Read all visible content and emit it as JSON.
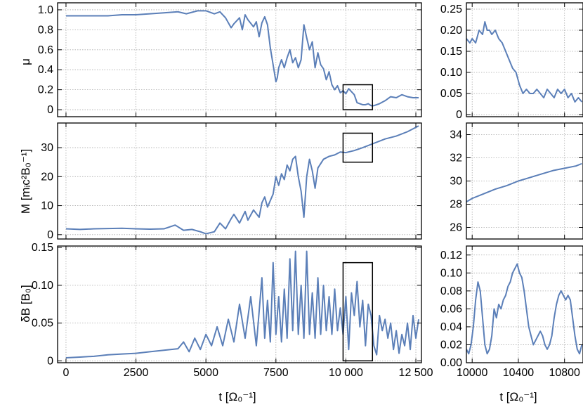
{
  "figure": {
    "line_color": "#5b7fb8",
    "inset_box_color": "#000000",
    "grid_color": "#aaaaaa"
  },
  "chart_data": [
    {
      "type": "line",
      "id": "mu_main",
      "ylabel": "μ",
      "xlabel": "",
      "xlim": [
        -300,
        12700
      ],
      "ylim": [
        -0.07,
        1.07
      ],
      "xticks": [
        0,
        2500,
        5000,
        7500,
        10000,
        12500
      ],
      "xtick_labels": [
        "",
        "",
        "",
        "",
        "",
        ""
      ],
      "yticks": [
        0,
        0.2,
        0.4,
        0.6,
        0.8,
        1.0
      ],
      "ytick_labels": [
        "0",
        "0.2",
        "0.4",
        "0.6",
        "0.8",
        "1.0"
      ],
      "grid": true,
      "inset_box": {
        "x": [
          9900,
          10950
        ],
        "y": [
          0,
          0.25
        ]
      },
      "series": [
        {
          "x": [
            0,
            500,
            1000,
            1500,
            2000,
            2500,
            3000,
            3500,
            4000,
            4300,
            4700,
            5000,
            5300,
            5500,
            5700,
            5900,
            6000,
            6200,
            6300,
            6400,
            6500,
            6700,
            6800,
            6900,
            7000,
            7100,
            7200,
            7300,
            7400,
            7500,
            7550,
            7600,
            7700,
            7800,
            7900,
            8000,
            8100,
            8200,
            8300,
            8400,
            8500,
            8600,
            8700,
            8800,
            8900,
            9000,
            9100,
            9200,
            9300,
            9400,
            9500,
            9600,
            9700,
            9800,
            9900,
            10000,
            10100,
            10200,
            10300,
            10400,
            10500,
            10600,
            10700,
            10800,
            10900,
            11000,
            11200,
            11400,
            11600,
            11800,
            12000,
            12200,
            12400,
            12600
          ],
          "y": [
            0.94,
            0.94,
            0.94,
            0.94,
            0.95,
            0.95,
            0.96,
            0.97,
            0.98,
            0.96,
            0.99,
            0.99,
            0.96,
            0.98,
            0.92,
            0.82,
            0.86,
            0.92,
            0.8,
            0.95,
            0.9,
            0.83,
            0.88,
            0.73,
            0.87,
            0.93,
            0.85,
            0.62,
            0.45,
            0.28,
            0.32,
            0.42,
            0.5,
            0.42,
            0.52,
            0.6,
            0.47,
            0.52,
            0.42,
            0.5,
            0.85,
            0.72,
            0.6,
            0.68,
            0.42,
            0.57,
            0.45,
            0.41,
            0.3,
            0.38,
            0.25,
            0.2,
            0.24,
            0.17,
            0.19,
            0.16,
            0.21,
            0.18,
            0.15,
            0.07,
            0.06,
            0.05,
            0.05,
            0.06,
            0.04,
            0.04,
            0.06,
            0.09,
            0.13,
            0.12,
            0.15,
            0.13,
            0.12,
            0.12
          ]
        }
      ]
    },
    {
      "type": "line",
      "id": "M_main",
      "ylabel": "M [mᵢc²B₀⁻¹]",
      "xlabel": "",
      "xlim": [
        -300,
        12700
      ],
      "ylim": [
        -1.5,
        38.5
      ],
      "xticks": [
        0,
        2500,
        5000,
        7500,
        10000,
        12500
      ],
      "xtick_labels": [
        "",
        "",
        "",
        "",
        "",
        ""
      ],
      "yticks": [
        0,
        10,
        20,
        30
      ],
      "ytick_labels": [
        "0",
        "10",
        "20",
        "30"
      ],
      "grid": true,
      "inset_box": {
        "x": [
          9900,
          10950
        ],
        "y": [
          25,
          35
        ]
      },
      "series": [
        {
          "x": [
            0,
            500,
            1000,
            1500,
            2000,
            2500,
            3000,
            3500,
            3900,
            4200,
            4500,
            4800,
            5000,
            5300,
            5500,
            5700,
            5900,
            6000,
            6200,
            6400,
            6500,
            6700,
            6900,
            7000,
            7100,
            7200,
            7400,
            7500,
            7600,
            7700,
            7800,
            7900,
            8000,
            8100,
            8200,
            8300,
            8400,
            8500,
            8600,
            8700,
            8800,
            8900,
            9000,
            9200,
            9400,
            9600,
            9800,
            10000,
            10300,
            10600,
            11000,
            11400,
            11800,
            12200,
            12600
          ],
          "y": [
            2.0,
            1.8,
            2.0,
            2.1,
            2.2,
            2.0,
            1.9,
            2.0,
            3.3,
            1.5,
            1.8,
            1.0,
            0.3,
            1.0,
            4.0,
            2.0,
            5.5,
            7.0,
            4.0,
            8.0,
            5.0,
            8.5,
            6.0,
            11.0,
            13.0,
            9.5,
            14.0,
            20.0,
            17.0,
            21.0,
            19.0,
            24.0,
            22.0,
            26.0,
            27.0,
            20.0,
            15.0,
            6.0,
            20.0,
            26.0,
            22.0,
            16.0,
            23.0,
            26.0,
            27.0,
            27.5,
            28.5,
            28.3,
            29.0,
            30.0,
            31.5,
            33.0,
            34.0,
            35.5,
            37.5
          ]
        }
      ]
    },
    {
      "type": "line",
      "id": "dB_main",
      "ylabel": "δB [B₀]",
      "xlabel": "t [Ω₀⁻¹]",
      "xlim": [
        -300,
        12700
      ],
      "ylim": [
        -0.0025,
        0.152
      ],
      "xticks": [
        0,
        2500,
        5000,
        7500,
        10000,
        12500
      ],
      "xtick_labels": [
        "0",
        "2500",
        "5000",
        "7500",
        "10 000",
        "12 500"
      ],
      "yticks": [
        0,
        0.05,
        0.1,
        0.15
      ],
      "ytick_labels": [
        "0",
        "0.05",
        "0.10",
        "0.15"
      ],
      "grid": true,
      "inset_box": {
        "x": [
          9900,
          10950
        ],
        "y": [
          0,
          0.13
        ]
      },
      "series": [
        {
          "x": [
            0,
            500,
            1000,
            1500,
            2000,
            2500,
            3000,
            3500,
            4000,
            4200,
            4400,
            4600,
            4800,
            5000,
            5200,
            5400,
            5600,
            5800,
            6000,
            6200,
            6400,
            6600,
            6800,
            7000,
            7100,
            7200,
            7300,
            7400,
            7500,
            7600,
            7700,
            7800,
            7900,
            8000,
            8100,
            8200,
            8300,
            8400,
            8500,
            8600,
            8700,
            8800,
            8900,
            9000,
            9100,
            9200,
            9300,
            9400,
            9500,
            9600,
            9700,
            9800,
            9900,
            10000,
            10100,
            10200,
            10300,
            10400,
            10500,
            10600,
            10700,
            10800,
            10900,
            11000,
            11100,
            11200,
            11300,
            11400,
            11500,
            11600,
            11700,
            11800,
            11900,
            12000,
            12100,
            12200,
            12300,
            12400,
            12500,
            12600
          ],
          "y": [
            0.004,
            0.005,
            0.006,
            0.008,
            0.009,
            0.01,
            0.012,
            0.014,
            0.016,
            0.025,
            0.012,
            0.03,
            0.015,
            0.035,
            0.02,
            0.045,
            0.02,
            0.055,
            0.025,
            0.075,
            0.03,
            0.085,
            0.02,
            0.11,
            0.03,
            0.08,
            0.025,
            0.13,
            0.035,
            0.085,
            0.025,
            0.095,
            0.03,
            0.135,
            0.04,
            0.145,
            0.035,
            0.1,
            0.03,
            0.145,
            0.035,
            0.09,
            0.03,
            0.11,
            0.035,
            0.1,
            0.04,
            0.085,
            0.035,
            0.095,
            0.04,
            0.07,
            0.035,
            0.085,
            0.015,
            0.09,
            0.06,
            0.105,
            0.045,
            0.08,
            0.02,
            0.075,
            0.06,
            0.02,
            0.008,
            0.06,
            0.04,
            0.055,
            0.03,
            0.05,
            0.015,
            0.04,
            0.01,
            0.035,
            0.02,
            0.05,
            0.015,
            0.06,
            0.03,
            0.055
          ]
        }
      ]
    },
    {
      "type": "line",
      "id": "mu_inset",
      "ylabel": "",
      "xlabel": "",
      "xlim": [
        9950,
        10960
      ],
      "ylim": [
        -0.005,
        0.265
      ],
      "xticks": [
        10000,
        10400,
        10800
      ],
      "xtick_labels": [
        "",
        "",
        ""
      ],
      "yticks": [
        0,
        0.05,
        0.1,
        0.15,
        0.2,
        0.25
      ],
      "ytick_labels": [
        "0",
        "0.05",
        "0.10",
        "0.15",
        "0.20",
        "0.25"
      ],
      "grid": true,
      "series": [
        {
          "x": [
            9950,
            9980,
            10000,
            10030,
            10060,
            10090,
            10110,
            10130,
            10150,
            10170,
            10200,
            10230,
            10260,
            10290,
            10320,
            10350,
            10380,
            10410,
            10440,
            10470,
            10500,
            10530,
            10560,
            10590,
            10620,
            10650,
            10680,
            10710,
            10740,
            10770,
            10800,
            10830,
            10860,
            10890,
            10920,
            10950
          ],
          "y": [
            0.18,
            0.17,
            0.18,
            0.17,
            0.2,
            0.19,
            0.22,
            0.2,
            0.2,
            0.19,
            0.2,
            0.18,
            0.17,
            0.15,
            0.13,
            0.11,
            0.1,
            0.07,
            0.05,
            0.06,
            0.05,
            0.05,
            0.06,
            0.05,
            0.04,
            0.06,
            0.05,
            0.04,
            0.06,
            0.05,
            0.06,
            0.04,
            0.05,
            0.03,
            0.04,
            0.03
          ]
        }
      ]
    },
    {
      "type": "line",
      "id": "M_inset",
      "ylabel": "",
      "xlabel": "",
      "xlim": [
        9950,
        10960
      ],
      "ylim": [
        25.0,
        35.0
      ],
      "xticks": [
        10000,
        10400,
        10800
      ],
      "xtick_labels": [
        "",
        "",
        ""
      ],
      "yticks": [
        26,
        28,
        30,
        32,
        34
      ],
      "ytick_labels": [
        "26",
        "28",
        "30",
        "32",
        "34"
      ],
      "grid": true,
      "series": [
        {
          "x": [
            9950,
            10000,
            10100,
            10200,
            10300,
            10400,
            10500,
            10600,
            10700,
            10800,
            10900,
            10950
          ],
          "y": [
            28.2,
            28.5,
            28.9,
            29.3,
            29.6,
            30.0,
            30.3,
            30.6,
            30.9,
            31.1,
            31.3,
            31.5
          ]
        }
      ]
    },
    {
      "type": "line",
      "id": "dB_inset",
      "ylabel": "",
      "xlabel": "t [Ω₀⁻¹]",
      "xlim": [
        9950,
        10960
      ],
      "ylim": [
        0,
        0.13
      ],
      "xticks": [
        10000,
        10400,
        10800
      ],
      "xtick_labels": [
        "10000",
        "10400",
        "10800"
      ],
      "yticks": [
        0,
        0.02,
        0.04,
        0.06,
        0.08,
        0.1,
        0.12
      ],
      "ytick_labels": [
        "0.00",
        "0.02",
        "0.04",
        "0.06",
        "0.08",
        "0.10",
        "0.12"
      ],
      "grid": true,
      "series": [
        {
          "x": [
            9950,
            9970,
            9990,
            10010,
            10030,
            10050,
            10070,
            10090,
            10110,
            10130,
            10150,
            10170,
            10190,
            10210,
            10230,
            10250,
            10270,
            10290,
            10310,
            10330,
            10350,
            10370,
            10390,
            10410,
            10430,
            10450,
            10470,
            10490,
            10510,
            10530,
            10550,
            10570,
            10590,
            10610,
            10630,
            10650,
            10670,
            10690,
            10710,
            10730,
            10750,
            10770,
            10790,
            10810,
            10830,
            10850,
            10870,
            10890,
            10910,
            10930,
            10950
          ],
          "y": [
            0.015,
            0.01,
            0.02,
            0.04,
            0.07,
            0.09,
            0.08,
            0.05,
            0.02,
            0.01,
            0.015,
            0.03,
            0.06,
            0.05,
            0.065,
            0.06,
            0.07,
            0.075,
            0.085,
            0.09,
            0.1,
            0.105,
            0.11,
            0.1,
            0.095,
            0.08,
            0.06,
            0.04,
            0.03,
            0.02,
            0.025,
            0.03,
            0.035,
            0.03,
            0.02,
            0.015,
            0.02,
            0.03,
            0.05,
            0.065,
            0.075,
            0.08,
            0.075,
            0.07,
            0.075,
            0.07,
            0.05,
            0.03,
            0.015,
            0.01,
            0.02
          ]
        }
      ]
    }
  ]
}
